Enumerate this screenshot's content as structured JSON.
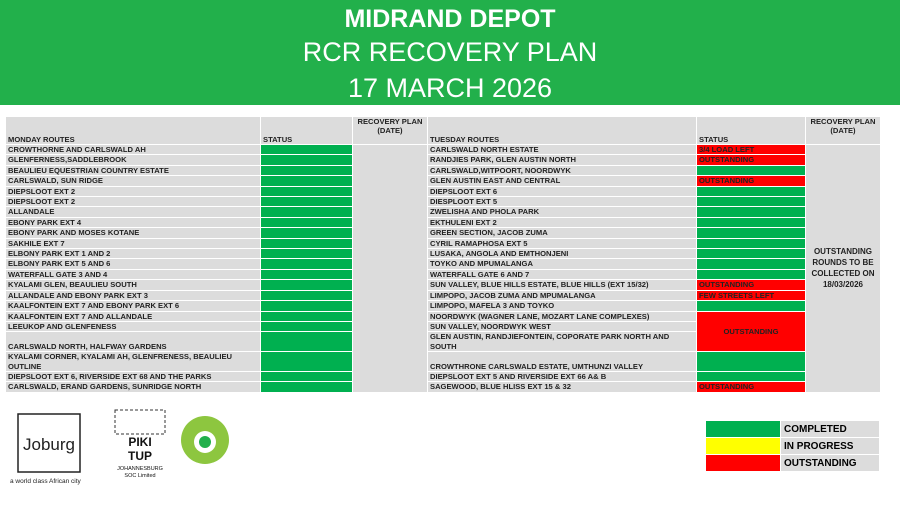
{
  "header": {
    "title": "MIDRAND DEPOT",
    "subtitle": "RCR RECOVERY PLAN",
    "date": "17 MARCH 2026"
  },
  "table": {
    "headers": [
      "MONDAY ROUTES",
      "STATUS",
      "RECOVERY PLAN (DATE)",
      "TUESDAY ROUTES",
      "STATUS",
      "RECOVERY PLAN (DATE)"
    ],
    "tuesday_recovery_note": "OUTSTANDING ROUNDS TO BE COLLECTED ON 18/03/2026",
    "rows": [
      {
        "monday": "CROWTHORNE AND CARLSWALD AH",
        "mon_color": "#00b050",
        "tuesday": "CARLSWALD NORTH ESTATE",
        "tue_color": "#ff0000",
        "tue_status": "3/4 LOAD LEFT"
      },
      {
        "monday": "GLENFERNESS,SADDLEBROOK",
        "mon_color": "#00b050",
        "tuesday": "RANDJIES PARK, GLEN AUSTIN NORTH",
        "tue_color": "#ff0000",
        "tue_status": "OUTSTANDING"
      },
      {
        "monday": "BEAULIEU EQUESTRIAN COUNTRY ESTATE",
        "mon_color": "#00b050",
        "tuesday": "CARLSWALD,WITPOORT,  NOORDWYK",
        "tue_color": "#00b050"
      },
      {
        "monday": "CARLSWALD, SUN RIDGE",
        "mon_color": "#00b050",
        "tuesday": "GLEN AUSTIN EAST AND CENTRAL",
        "tue_color": "#ff0000",
        "tue_status": "OUTSTANDING"
      },
      {
        "monday": "DIEPSLOOT EXT 2",
        "mon_color": "#00b050",
        "tuesday": "DIEPSLOOT EXT 6",
        "tue_color": "#00b050"
      },
      {
        "monday": "DIEPSLOOT EXT 2",
        "mon_color": "#00b050",
        "tuesday": "DIESPLOOT EXT 5",
        "tue_color": "#00b050"
      },
      {
        "monday": "ALLANDALE",
        "mon_color": "#00b050",
        "tuesday": "ZWELISHA AND PHOLA PARK",
        "tue_color": "#00b050"
      },
      {
        "monday": "EBONY PARK EXT 4",
        "mon_color": "#00b050",
        "tuesday": "EKTHULENI EXT 2",
        "tue_color": "#00b050"
      },
      {
        "monday": "EBONY PARK AND MOSES KOTANE",
        "mon_color": "#00b050",
        "tuesday": "GREEN SECTION, JACOB ZUMA",
        "tue_color": "#00b050"
      },
      {
        "monday": "SAKHILE EXT 7",
        "mon_color": "#00b050",
        "tuesday": "CYRIL RAMAPHOSA  EXT 5",
        "tue_color": "#00b050"
      },
      {
        "monday": "ELBONY PARK EXT 1 AND 2",
        "mon_color": "#00b050",
        "tuesday": "LUSAKA, ANGOLA AND EMTHONJENI",
        "tue_color": "#00b050"
      },
      {
        "monday": "ELBONY PARK EXT 5 AND 6",
        "mon_color": "#00b050",
        "tuesday": "TOYKO AND MPUMALANGA",
        "tue_color": "#00b050"
      },
      {
        "monday": "WATERFALL GATE  3 AND 4",
        "mon_color": "#00b050",
        "tuesday": "WATERFALL GATE 6 AND 7",
        "tue_color": "#00b050"
      },
      {
        "monday": "KYALAMI  GLEN, BEAULIEU SOUTH",
        "mon_color": "#00b050",
        "tuesday": "SUN VALLEY,  BLUE HILLS ESTATE, BLUE HILLS (EXT 15/32)",
        "tue_color": "#ff0000",
        "tue_status": "OUTSTANDING"
      },
      {
        "monday": "ALLANDALE AND EBONY PARK EXT 3",
        "mon_color": "#00b050",
        "tuesday": "LIMPOPO, JACOB ZUMA AND MPUMALANGA",
        "tue_color": "#ff0000",
        "tue_status": "FEW  STREETS  LEFT"
      },
      {
        "monday": "KAALFONTEIN  EXT 7 AND EBONY PARK EXT  6",
        "mon_color": "#00b050",
        "tuesday": "LIMPOPO, MAFELA  3  AND TOYKO",
        "tue_color": "#00b050"
      },
      {
        "monday": "KAALFONTEIN  EXT 7 AND ALLANDALE",
        "mon_color": "#00b050",
        "tuesday": "NOORDWYK (WAGNER LANE, MOZART  LANE COMPLEXES)",
        "tue_color": "#ff0000",
        "tue_status": "OUTSTANDING"
      },
      {
        "monday": "LEEUKOP AND GLENFENESS",
        "mon_color": "#00b050",
        "tuesday": "SUN VALLEY,  NOORDWYK WEST"
      },
      {
        "monday": "CARLSWALD NORTH,  HALFWAY  GARDENS",
        "mon_color": "#00b050",
        "tuesday": "GLEN AUSTIN,  RANDJIEFONTEIN,  COPORATE PARK NORTH AND SOUTH"
      },
      {
        "monday": "KYALAMI CORNER, KYALAMI  AH,  GLENFRENESS, BEAULIEU OUTLINE",
        "mon_color": "#00b050",
        "tuesday": "CROWTHRONE  CARLSWALD ESTATE,  UMTHUNZI VALLEY",
        "tue_color": "#00b050"
      },
      {
        "monday": "DIEPSLOOT EXT 6, RIVERSIDE  EXT  68 AND THE PARKS",
        "mon_color": "#00b050",
        "tuesday": "DIEPSLOOT EXT 5 AND RIVERSIDE EXT  66 A& B",
        "tue_color": "#00b050"
      },
      {
        "monday": "CARLSWALD, ERAND GARDENS, SUNRIDGE NORTH",
        "mon_color": "#00b050",
        "tuesday": "SAGEWOOD,  BLUE HLISS EXT 15 & 32",
        "tue_color": "#ff0000",
        "tue_status": "OUTSTANDING"
      }
    ]
  },
  "legend": [
    {
      "label": "COMPLETED",
      "color": "#00b050"
    },
    {
      "label": "IN PROGRESS",
      "color": "#ffff00"
    },
    {
      "label": "OUTSTANDING",
      "color": "#ff0000"
    }
  ],
  "logos": {
    "joburg": "Joburg",
    "joburg_tagline": "a world class African city",
    "pikitup_1": "PIKI",
    "pikitup_2": "TUP",
    "pikitup_sub_1": "JOHANNESBURG",
    "pikitup_sub_2": "SOC Limited"
  }
}
